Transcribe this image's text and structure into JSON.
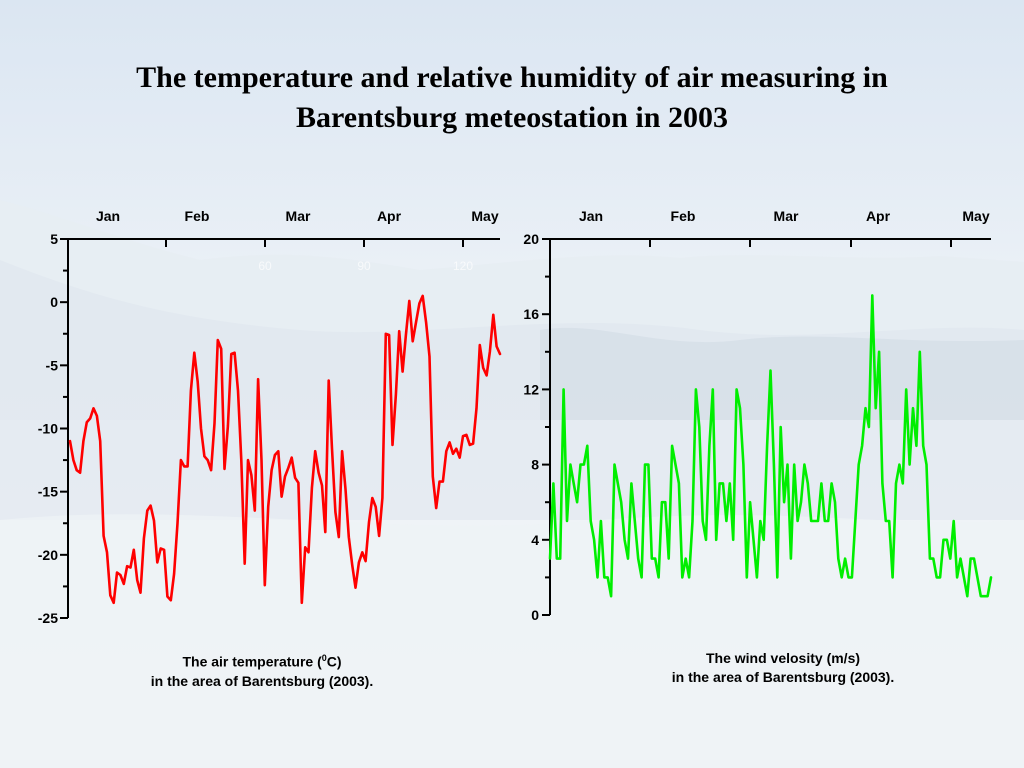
{
  "title_line1": "The temperature and relative humidity of air measuring in",
  "title_line2": "Barentsburg meteostation in 2003",
  "caption_left_line1_pre": "The air temperature (",
  "caption_left_line1_sup": "0",
  "caption_left_line1_post": "C)",
  "caption_left_line2": "in the area of Barentsburg (2003).",
  "caption_right_line1": "The wind velosity (m/s)",
  "caption_right_line2": "in the area of Barentsburg (2003).",
  "colors": {
    "temperature": "#ff0000",
    "wind": "#00ee00",
    "axis": "#000000"
  },
  "chart_data": [
    {
      "type": "line",
      "month_labels": [
        "Jan",
        "Feb",
        "Mar",
        "Apr",
        "May"
      ],
      "month_positions": [
        0,
        31,
        59,
        90,
        120
      ],
      "ghost_labels": [
        "60",
        "90",
        "120"
      ],
      "ghost_positions": [
        60,
        90,
        120
      ],
      "xlim": [
        0,
        133
      ],
      "ylim": [
        -25,
        5
      ],
      "y_ticks": [
        5,
        0,
        -5,
        -10,
        -15,
        -20,
        -25
      ],
      "series": [
        {
          "values": [
            -11,
            -12.5,
            -13.3,
            -13.5,
            -11,
            -9.5,
            -9.2,
            -8.4,
            -9,
            -11,
            -18.5,
            -19.8,
            -23.2,
            -23.8,
            -21.4,
            -21.6,
            -22.3,
            -20.9,
            -21,
            -19.6,
            -22,
            -23,
            -18.7,
            -16.5,
            -16.1,
            -17.3,
            -20.6,
            -19.5,
            -19.6,
            -23.3,
            -23.6,
            -21.5,
            -17.5,
            -12.5,
            -13,
            -13,
            -7,
            -4,
            -6.3,
            -10,
            -12.2,
            -12.5,
            -13.3,
            -9.6,
            -3,
            -3.7,
            -13.2,
            -9.8,
            -4.1,
            -4,
            -7,
            -12.5,
            -20.7,
            -12.5,
            -13.7,
            -16.5,
            -6.1,
            -12.5,
            -22.4,
            -16.2,
            -13.3,
            -12.1,
            -11.8,
            -15.4,
            -13.8,
            -13.1,
            -12.3,
            -13.9,
            -14.3,
            -23.8,
            -19.4,
            -19.8,
            -14.7,
            -11.8,
            -13.5,
            -14.5,
            -18.2,
            -6.2,
            -11.6,
            -16.6,
            -18.6,
            -11.8,
            -14.8,
            -18.6,
            -20.8,
            -22.6,
            -20.6,
            -19.8,
            -20.5,
            -17.4,
            -15.5,
            -16.2,
            -18.5,
            -15.5,
            -2.5,
            -2.6,
            -11.3,
            -7.3,
            -2.3,
            -5.5,
            -2.6,
            0.1,
            -3.1,
            -1.6,
            -0.1,
            0.5,
            -1.6,
            -4.3,
            -13.8,
            -16.3,
            -14.2,
            -14.2,
            -11.8,
            -11.1,
            -12,
            -11.6,
            -12.3,
            -10.6,
            -10.5,
            -11.3,
            -11.2,
            -8.4,
            -3.4,
            -5.2,
            -5.8,
            -3.9,
            -1,
            -3.5,
            -4.1
          ]
        }
      ]
    },
    {
      "type": "line",
      "month_labels": [
        "Jan",
        "Feb",
        "Mar",
        "Apr",
        "May"
      ],
      "month_positions": [
        0,
        31,
        59,
        90,
        120
      ],
      "xlim": [
        0,
        133
      ],
      "ylim": [
        0,
        20
      ],
      "y_ticks": [
        20,
        16,
        12,
        8,
        4,
        0
      ],
      "series": [
        {
          "values": [
            3,
            7,
            3,
            3,
            12,
            5,
            8,
            7,
            6,
            8,
            8,
            9,
            5,
            4,
            2,
            5,
            2,
            2,
            1,
            8,
            7,
            6,
            4,
            3,
            7,
            5,
            3,
            2,
            8,
            8,
            3,
            3,
            2,
            6,
            6,
            3,
            9,
            8,
            7,
            2,
            3,
            2,
            5,
            12,
            10,
            5,
            4,
            9,
            12,
            4,
            7,
            7,
            5,
            7,
            4,
            12,
            11,
            8,
            2,
            6,
            4,
            2,
            5,
            4,
            9,
            13,
            8,
            2,
            10,
            6,
            8,
            3,
            8,
            5,
            6,
            8,
            7,
            5,
            5,
            5,
            7,
            5,
            5,
            7,
            6,
            3,
            2,
            3,
            2,
            2,
            5,
            8,
            9,
            11,
            10,
            17,
            11,
            14,
            7,
            5,
            5,
            2,
            7,
            8,
            7,
            12,
            8,
            11,
            9,
            14,
            9,
            8,
            3,
            3,
            2,
            2,
            4,
            4,
            3,
            5,
            2,
            3,
            2,
            1,
            3,
            3,
            2,
            1,
            1,
            1,
            2
          ]
        }
      ]
    }
  ]
}
